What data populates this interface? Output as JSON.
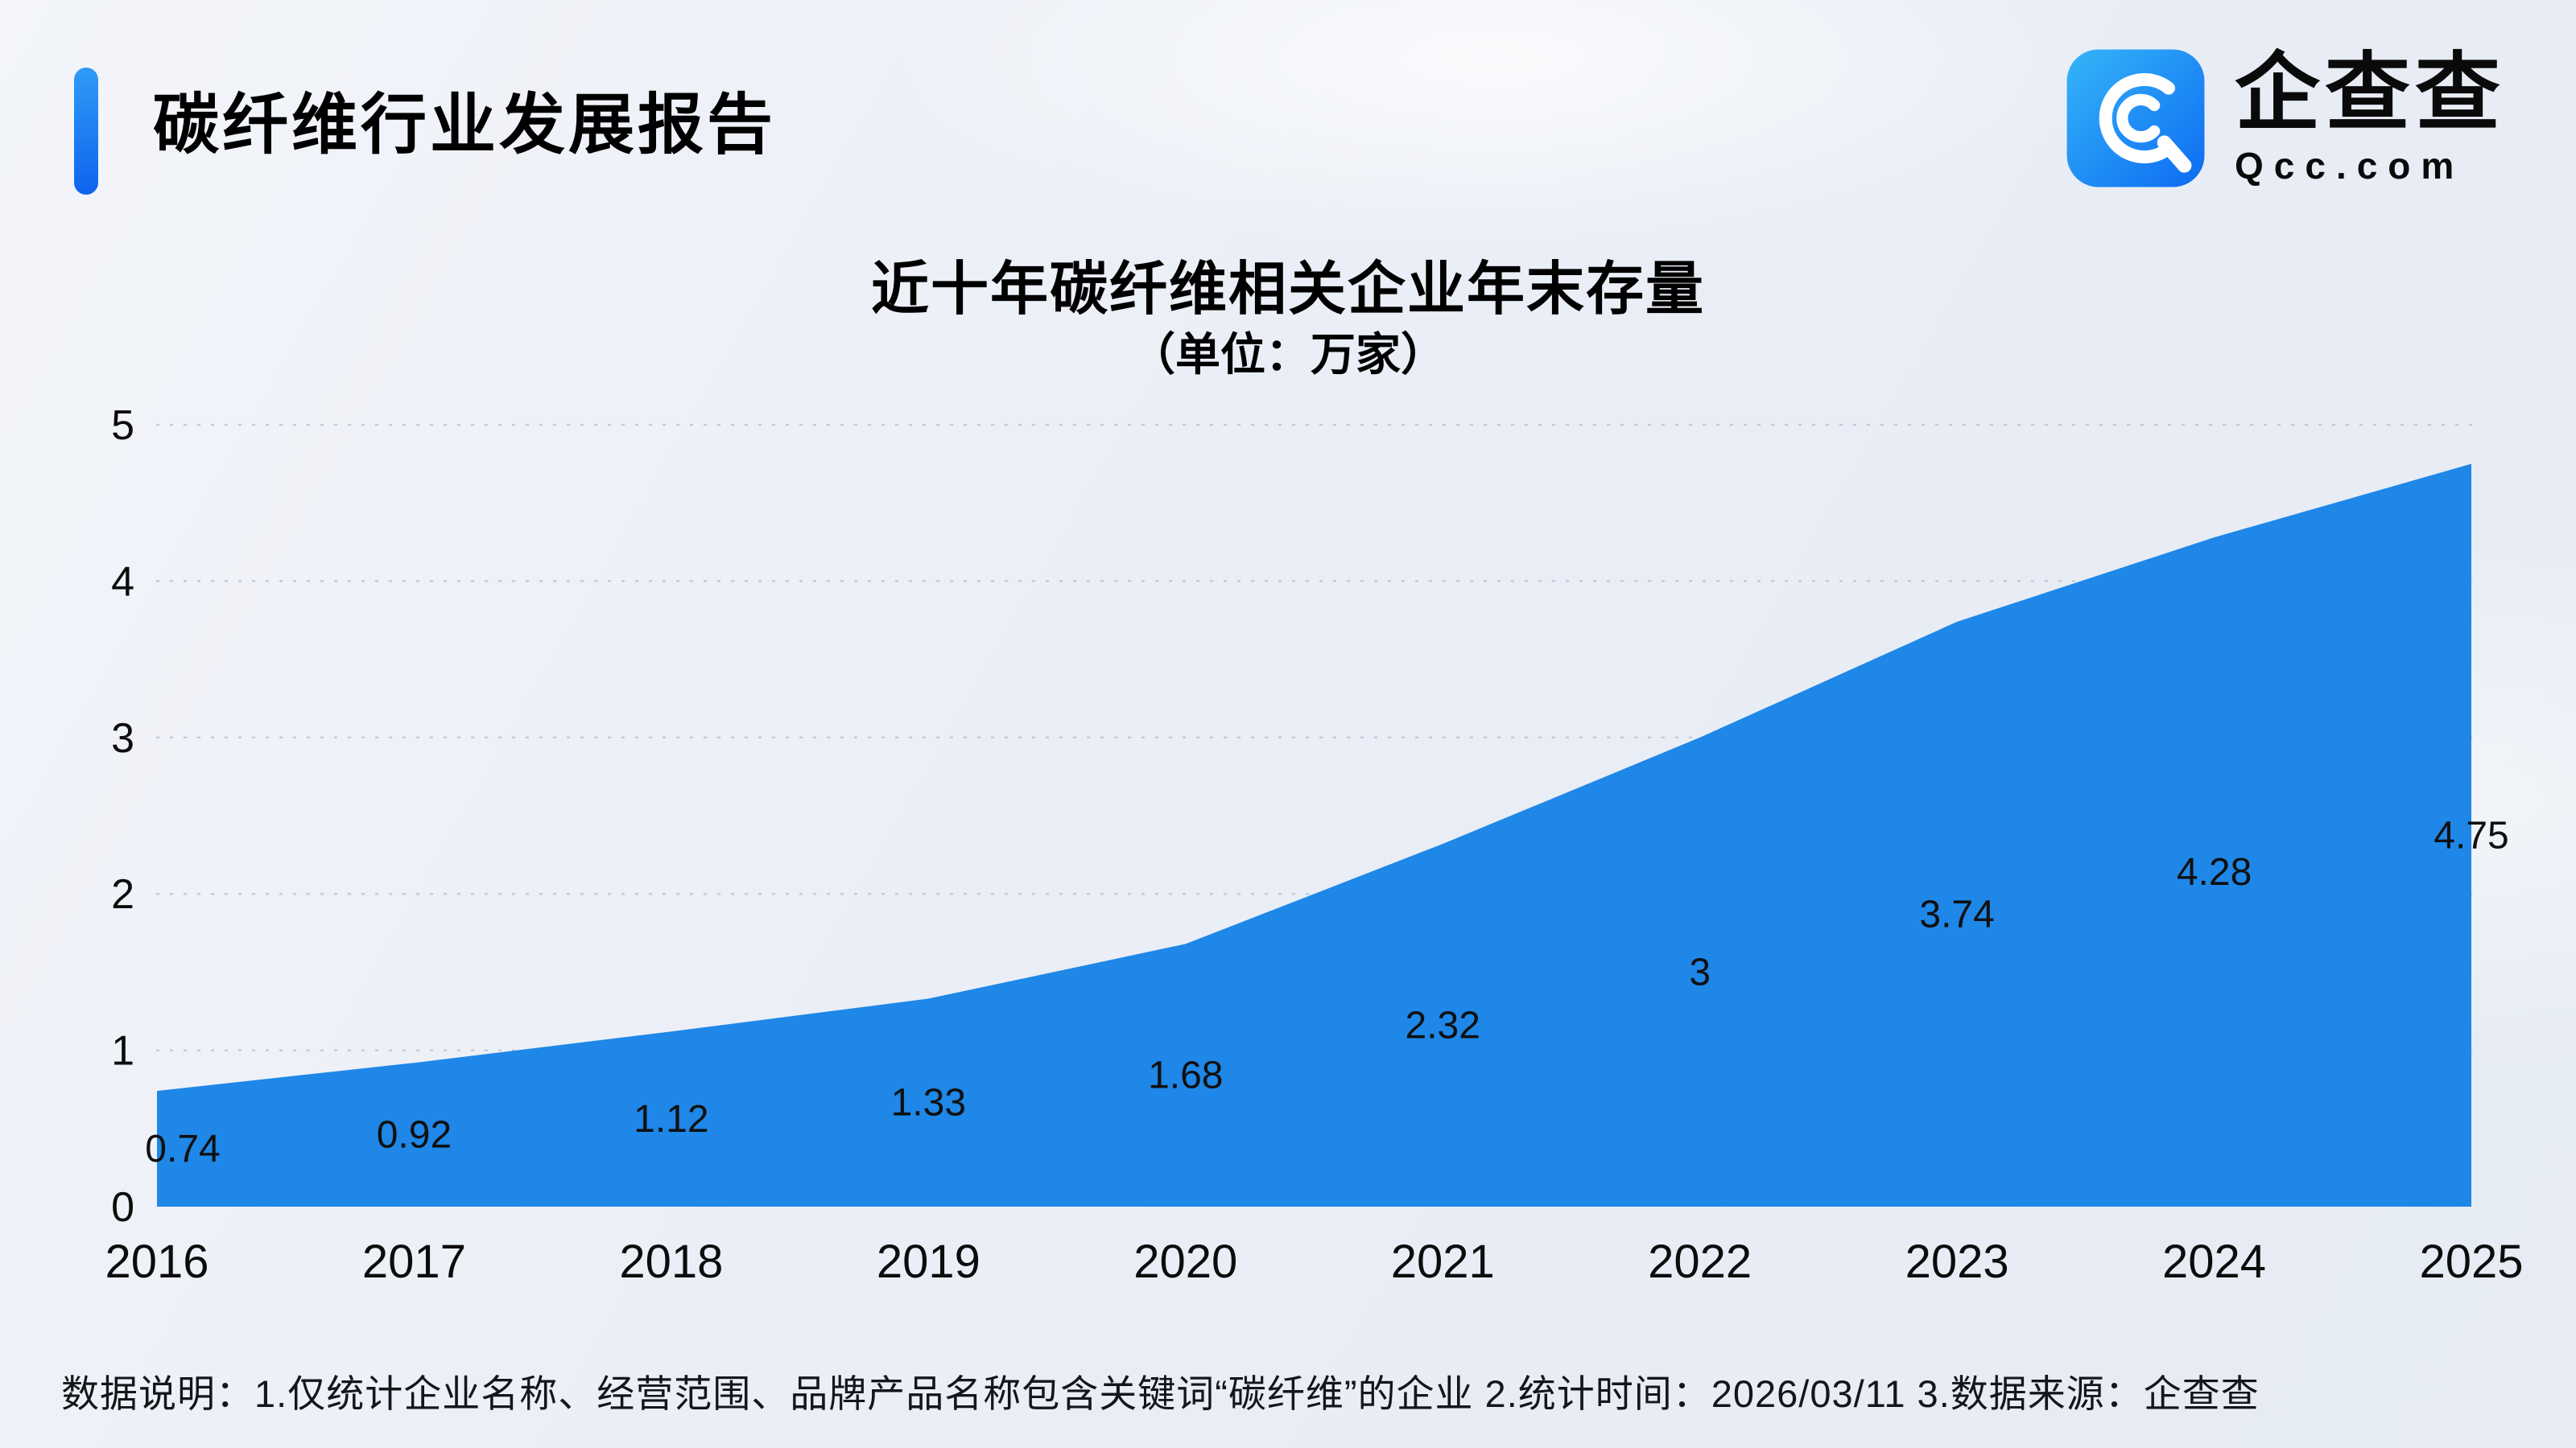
{
  "header": {
    "report_title": "碳纤维行业发展报告",
    "logo": {
      "name": "企查查",
      "domain": "Qcc.com"
    }
  },
  "chart": {
    "title": "近十年碳纤维相关企业年末存量",
    "subtitle": "（单位：万家）"
  },
  "chart_data": {
    "type": "area",
    "title": "近十年碳纤维相关企业年末存量",
    "subtitle": "（单位：万家）",
    "categories": [
      "2016",
      "2017",
      "2018",
      "2019",
      "2020",
      "2021",
      "2022",
      "2023",
      "2024",
      "2025"
    ],
    "values": [
      0.74,
      0.92,
      1.12,
      1.33,
      1.68,
      2.32,
      3,
      3.74,
      4.28,
      4.75
    ],
    "value_labels": [
      "0.74",
      "0.92",
      "1.12",
      "1.33",
      "1.68",
      "2.32",
      "3",
      "3.74",
      "4.28",
      "4.75"
    ],
    "xlabel": "",
    "ylabel": "",
    "ylim": [
      0,
      5
    ],
    "y_ticks": [
      0,
      1,
      2,
      3,
      4,
      5
    ],
    "grid": "dashed-horizontal",
    "legend": "none",
    "area_color": "#1E87E8",
    "label_color": "#101010"
  },
  "footer": {
    "note": "数据说明：1.仅统计企业名称、经营范围、品牌产品名称包含关键词“碳纤维”的企业  2.统计时间：2026/03/11   3.数据来源：企查查"
  },
  "colors": {
    "accent_blue": "#1677F0",
    "area_blue": "#1E87E8",
    "background": "#EAEEF6"
  }
}
